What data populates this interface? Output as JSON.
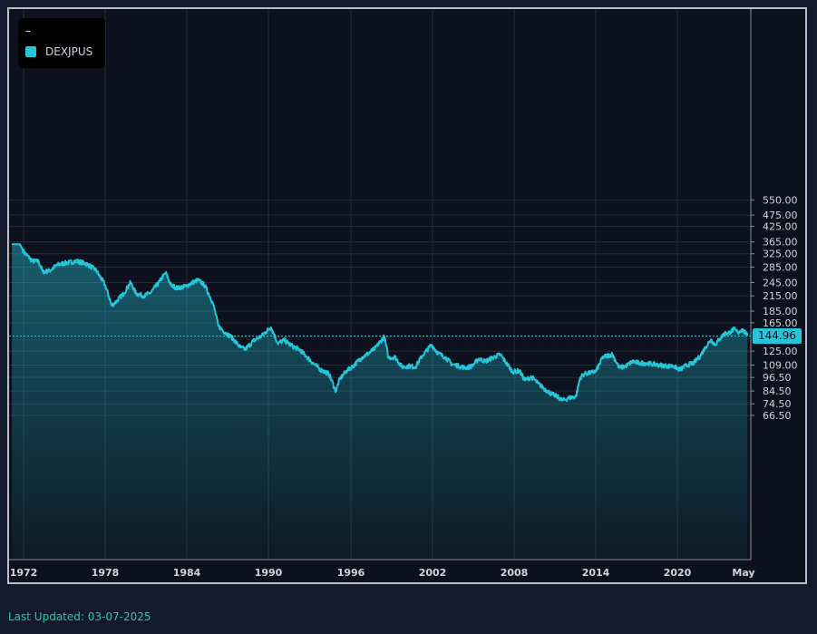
{
  "legend": {
    "title": "–",
    "series_name": "DEXJPUS",
    "swatch_color": "#26c6da"
  },
  "last_price": {
    "label": "144.96",
    "color": "#26c6da"
  },
  "footer": {
    "last_updated": "Last Updated: 03-07-2025"
  },
  "colors": {
    "background": "#0c111d",
    "page": "#131a2d",
    "grid": "#252c3c",
    "line": "#26c6da"
  },
  "chart_data": {
    "type": "area",
    "title": "",
    "xlabel": "",
    "ylabel": "",
    "y_scale": "log",
    "ylim": [
      60,
      560
    ],
    "grid": true,
    "legend_position": "top-left",
    "x_tick_labels": [
      "1972",
      "1978",
      "1984",
      "1990",
      "1996",
      "2002",
      "2008",
      "2014",
      "2020",
      "May"
    ],
    "y_tick_labels": [
      "550.00",
      "475.00",
      "425.00",
      "365.00",
      "325.00",
      "285.00",
      "245.00",
      "215.00",
      "185.00",
      "165.00",
      "125.00",
      "109.00",
      "96.50",
      "84.50",
      "74.50",
      "66.50"
    ],
    "series": [
      {
        "name": "DEXJPUS",
        "x": [
          1971.0,
          1971.6,
          1971.9,
          1972.5,
          1973.0,
          1973.3,
          1973.8,
          1974.4,
          1975.0,
          1975.8,
          1976.5,
          1977.2,
          1977.9,
          1978.4,
          1978.8,
          1979.3,
          1979.8,
          1980.2,
          1980.8,
          1981.3,
          1981.9,
          1982.4,
          1982.8,
          1983.3,
          1983.9,
          1984.4,
          1984.8,
          1985.3,
          1985.9,
          1986.3,
          1986.8,
          1987.3,
          1987.9,
          1988.3,
          1988.9,
          1989.5,
          1990.2,
          1990.7,
          1991.2,
          1991.8,
          1992.3,
          1992.8,
          1993.4,
          1993.9,
          1994.5,
          1995.0,
          1995.3,
          1995.8,
          1996.3,
          1996.9,
          1997.4,
          1997.9,
          1998.6,
          1998.9,
          1999.4,
          1999.9,
          2000.4,
          2000.9,
          2001.4,
          2002.1,
          2002.6,
          2003.1,
          2003.6,
          2004.1,
          2004.6,
          2005.1,
          2005.6,
          2006.1,
          2006.6,
          2007.2,
          2007.6,
          2008.1,
          2008.6,
          2009.0,
          2009.5,
          2010.0,
          2010.5,
          2011.0,
          2011.4,
          2011.8,
          2012.3,
          2012.8,
          2013.1,
          2013.4,
          2013.9,
          2014.3,
          2014.8,
          2015.5,
          2016.0,
          2016.5,
          2017.0,
          2017.5,
          2018.0,
          2018.5,
          2019.0,
          2019.5,
          2020.0,
          2020.5,
          2021.0,
          2021.5,
          2022.0,
          2022.4,
          2022.8,
          2023.1,
          2023.5,
          2023.8,
          2024.1,
          2024.5,
          2024.8,
          2025.1,
          2025.4,
          2025.5
        ],
        "values": [
          357,
          357,
          330,
          303,
          301,
          272,
          275,
          292,
          297,
          302,
          295,
          278,
          240,
          195,
          205,
          220,
          245,
          220,
          215,
          222,
          245,
          270,
          238,
          232,
          236,
          245,
          251,
          238,
          200,
          160,
          150,
          143,
          130,
          127,
          138,
          145,
          158,
          135,
          139,
          131,
          127,
          119,
          110,
          104,
          100,
          84,
          95,
          103,
          108,
          117,
          122,
          128,
          144,
          117,
          118,
          107,
          108,
          107,
          119,
          133,
          122,
          118,
          110,
          108,
          106,
          108,
          116,
          113,
          117,
          121,
          112,
          102,
          103,
          94,
          97,
          91,
          86,
          82,
          80,
          77,
          79,
          80,
          96,
          100,
          101,
          103,
          118,
          121,
          106,
          108,
          113,
          111,
          111,
          110,
          109,
          108,
          108,
          104,
          109,
          111,
          119,
          130,
          140,
          133,
          142,
          149,
          149,
          155,
          150,
          155,
          148,
          145
        ]
      }
    ]
  }
}
